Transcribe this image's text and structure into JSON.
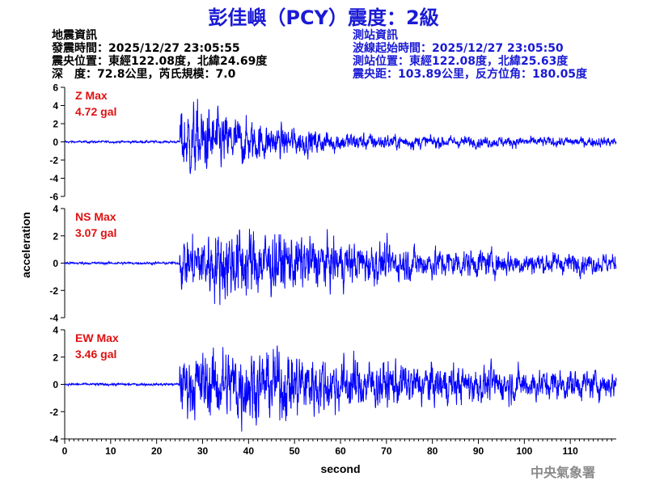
{
  "title": "彭佳嶼（PCY）震度：2級",
  "quake_info": {
    "header": "地震資訊",
    "origin_time": "發震時間：2025/12/27 23:05:55",
    "epicenter": "震央位置：東經122.08度，北緯24.69度",
    "depth_magnitude": "深　度：72.8公里，芮氏規模：7.0"
  },
  "station_info": {
    "header": "測站資訊",
    "record_start": "波線起始時間：2025/12/27 23:05:50",
    "location": "測站位置：東經122.08度，北緯25.63度",
    "distance": "震央距：103.89公里，反方位角：180.05度"
  },
  "agency": "中央氣象署",
  "chart_data": {
    "type": "line",
    "xlabel": "second",
    "ylabel": "acceleration",
    "xlim": [
      0,
      120
    ],
    "x_ticks": [
      0,
      10,
      20,
      30,
      40,
      50,
      60,
      70,
      80,
      90,
      100,
      110
    ],
    "grid": false,
    "line_color": "#0000ff",
    "label_color": "#e01010",
    "onset_seconds": 25,
    "panels": [
      {
        "name": "Z",
        "max_label": "Z Max",
        "max_value": "4.72 gal",
        "peak": 4.72,
        "ylim": [
          -6,
          6
        ],
        "y_ticks": [
          6,
          4,
          2,
          0,
          -2,
          -4,
          -6
        ],
        "y_tick_labels": [
          "6",
          "4",
          "2",
          "0",
          "-2",
          "-4",
          "-6"
        ]
      },
      {
        "name": "NS",
        "max_label": "NS Max",
        "max_value": "3.07 gal",
        "peak": 3.07,
        "ylim": [
          -4,
          4
        ],
        "y_ticks": [
          4,
          2,
          0,
          -2,
          -4
        ],
        "y_tick_labels": [
          "4",
          "2",
          "0",
          "-2",
          "-4"
        ]
      },
      {
        "name": "EW",
        "max_label": "EW Max",
        "max_value": "3.46 gal",
        "peak": 3.46,
        "ylim": [
          -4,
          4
        ],
        "y_ticks": [
          4,
          2,
          0,
          -2,
          -4
        ],
        "y_tick_labels": [
          "4",
          "2",
          "0",
          "-2",
          "-4"
        ]
      }
    ]
  }
}
